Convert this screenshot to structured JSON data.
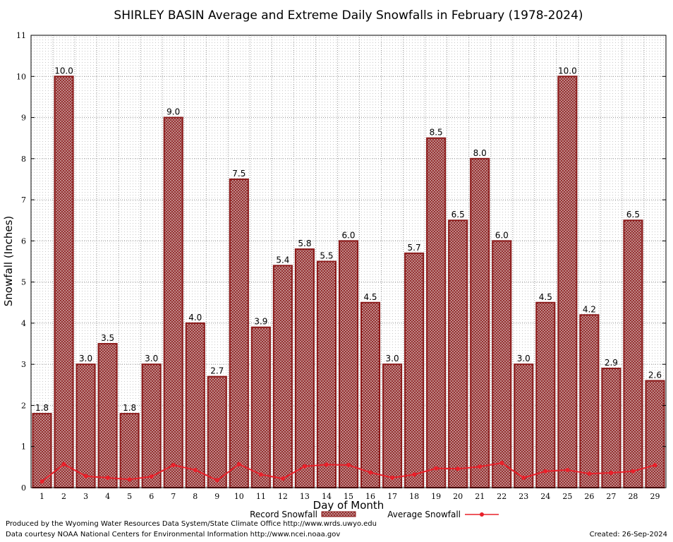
{
  "chart_data": {
    "type": "bar",
    "title": "SHIRLEY BASIN Average and Extreme Daily Snowfalls in February (1978-2024)",
    "xlabel": "Day of Month",
    "ylabel": "Snowfall (Inches)",
    "ylim": [
      0,
      11
    ],
    "yticks": [
      "0",
      "1",
      "2",
      "3",
      "4",
      "5",
      "6",
      "7",
      "8",
      "9",
      "10",
      "11"
    ],
    "categories": [
      "1",
      "2",
      "3",
      "4",
      "5",
      "6",
      "7",
      "8",
      "9",
      "10",
      "11",
      "12",
      "13",
      "14",
      "15",
      "16",
      "17",
      "18",
      "19",
      "20",
      "21",
      "22",
      "23",
      "24",
      "25",
      "26",
      "27",
      "28",
      "29"
    ],
    "series": [
      {
        "name": "Record Snowfall",
        "kind": "bar",
        "color": "#8b1a1a",
        "values": [
          1.8,
          10.0,
          3.0,
          3.5,
          1.8,
          3.0,
          9.0,
          4.0,
          2.7,
          7.5,
          3.9,
          5.4,
          5.8,
          5.5,
          6.0,
          4.5,
          3.0,
          5.7,
          8.5,
          6.5,
          8.0,
          6.0,
          3.0,
          4.5,
          10.0,
          4.2,
          2.9,
          6.5,
          2.6
        ],
        "labels": [
          "1.8",
          "10.0",
          "3.0",
          "3.5",
          "1.8",
          "3.0",
          "9.0",
          "4.0",
          "2.7",
          "7.5",
          "3.9",
          "5.4",
          "5.8",
          "5.5",
          "6.0",
          "4.5",
          "3.0",
          "5.7",
          "8.5",
          "6.5",
          "8.0",
          "6.0",
          "3.0",
          "4.5",
          "10.0",
          "4.2",
          "2.9",
          "6.5",
          "2.6"
        ]
      },
      {
        "name": "Average Snowfall",
        "kind": "line",
        "color": "#e8202a",
        "values": [
          0.15,
          0.57,
          0.28,
          0.24,
          0.2,
          0.27,
          0.55,
          0.43,
          0.18,
          0.57,
          0.32,
          0.22,
          0.52,
          0.56,
          0.55,
          0.37,
          0.24,
          0.32,
          0.47,
          0.46,
          0.51,
          0.6,
          0.24,
          0.4,
          0.43,
          0.34,
          0.36,
          0.4,
          0.55
        ]
      }
    ],
    "grid": true,
    "legend_position": "bottom"
  },
  "footer": {
    "credit_line1": "Produced by the Wyoming Water Resources Data System/State Climate Office http://www.wrds.uwyo.edu",
    "credit_line2": "Data courtesy NOAA National Centers for Environmental Information http://www.ncei.noaa.gov",
    "created": "Created:  26-Sep-2024"
  }
}
